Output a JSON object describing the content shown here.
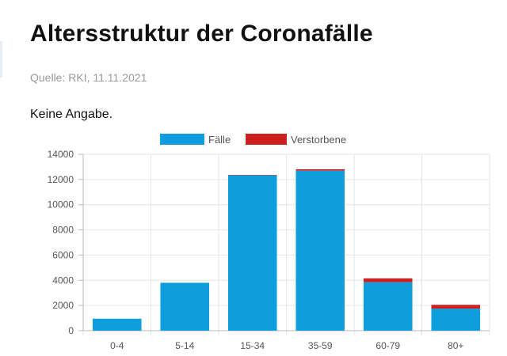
{
  "header": {
    "title": "Altersstruktur der Coronafälle",
    "source": "Quelle: RKI, 11.11.2021",
    "subtitle": "Keine Angabe."
  },
  "chart_data": {
    "type": "bar",
    "stacked": true,
    "categories": [
      "0-4",
      "5-14",
      "15-34",
      "35-59",
      "60-79",
      "80+"
    ],
    "series": [
      {
        "name": "Fälle",
        "color": "#0e9ede",
        "values": [
          950,
          3800,
          12350,
          12700,
          3850,
          1750
        ]
      },
      {
        "name": "Verstorbene",
        "color": "#cc1f1f",
        "values": [
          0,
          0,
          5,
          110,
          300,
          300
        ]
      }
    ],
    "ylim": [
      0,
      14000
    ],
    "yticks": [
      0,
      2000,
      4000,
      6000,
      8000,
      10000,
      12000,
      14000
    ],
    "legend_position": "top-center",
    "grid": true
  }
}
